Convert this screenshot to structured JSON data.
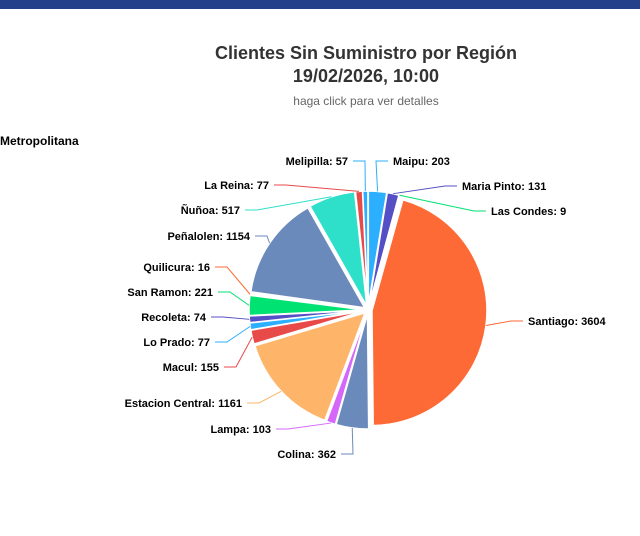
{
  "header": {
    "accent_color": "#24408b"
  },
  "chart_title_line1": "Clientes Sin Suministro por Región",
  "chart_title_line2": "19/02/2026, 10:00",
  "chart_subtitle": "haga click para ver detalles",
  "region_label": "Metropolitana",
  "chart_data": {
    "type": "pie",
    "title": "Clientes Sin Suministro por Región 19/02/2026, 10:00",
    "subtitle": "haga click para ver detalles",
    "categories": [
      "Maipu",
      "Maria Pinto",
      "Las Condes",
      "Santiago",
      "Colina",
      "Lampa",
      "Estacion Central",
      "Macul",
      "Lo Prado",
      "Recoleta",
      "San Ramon",
      "Quilicura",
      "Peñalolen",
      "Ñuñoa",
      "La Reina",
      "Melipilla"
    ],
    "values": [
      203,
      131,
      9,
      3604,
      362,
      103,
      1161,
      155,
      77,
      74,
      221,
      16,
      1154,
      517,
      77,
      57
    ],
    "colors": [
      "#2caffe",
      "#544fc5",
      "#00e272",
      "#fe6a35",
      "#6b8abc",
      "#d568fb",
      "#feb56a",
      "#e84a4a",
      "#2caffe",
      "#544fc5",
      "#00e272",
      "#fe6a35",
      "#6b8abc",
      "#2ee0ca",
      "#e84a4a",
      "#2caffe"
    ],
    "label_format": "{name}: {value}"
  }
}
